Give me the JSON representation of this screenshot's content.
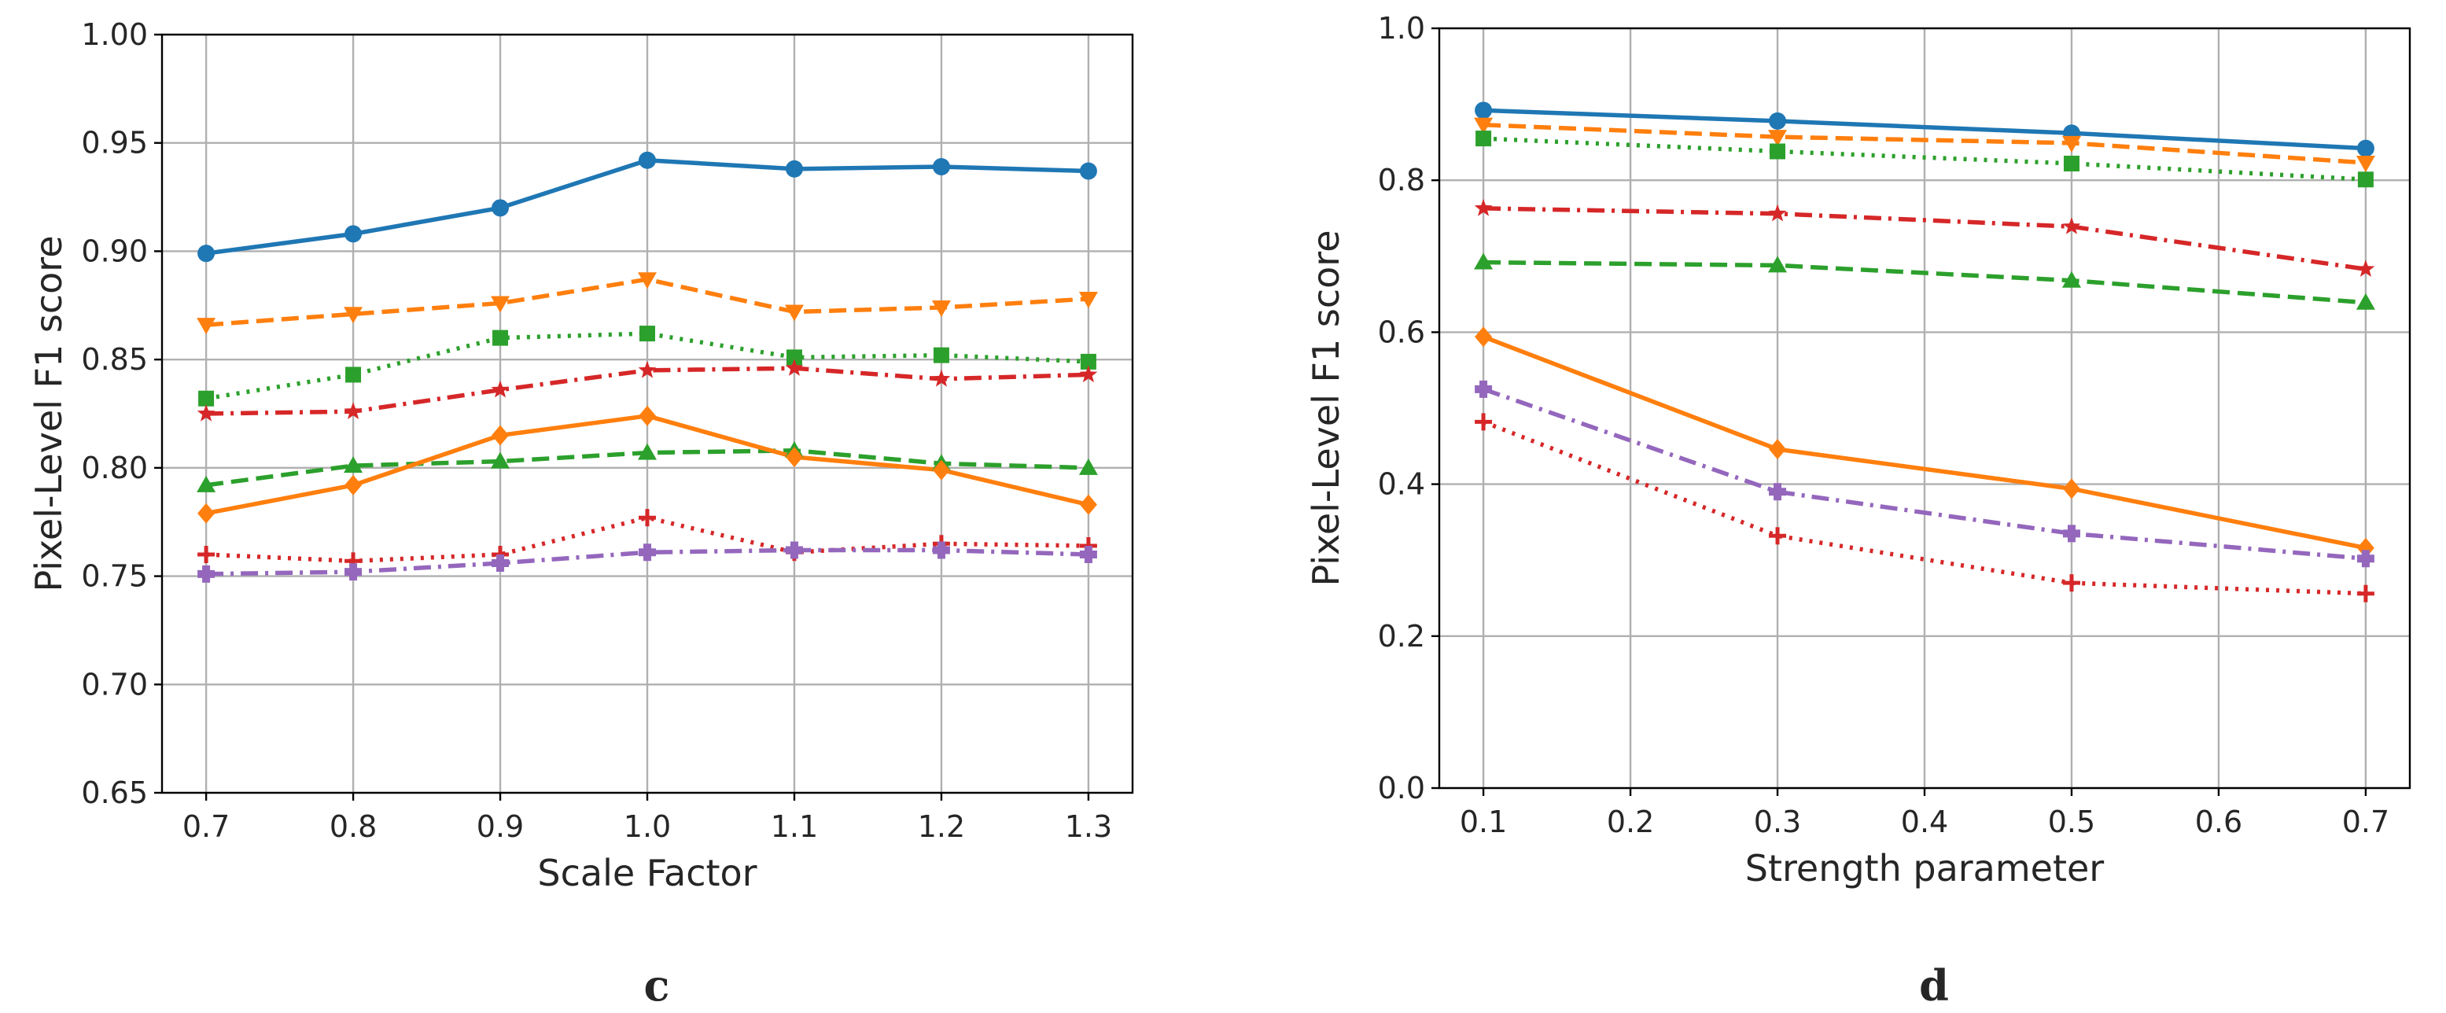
{
  "chart_data": [
    {
      "type": "line",
      "panel_label": "c",
      "xlabel": "Scale Factor",
      "ylabel": "Pixel-Level F1 score",
      "x": [
        0.7,
        0.8,
        0.9,
        1.0,
        1.1,
        1.2,
        1.3
      ],
      "x_ticks": [
        "0.7",
        "0.8",
        "0.9",
        "1.0",
        "1.1",
        "1.2",
        "1.3"
      ],
      "xlim": [
        0.67,
        1.33
      ],
      "ylim": [
        0.65,
        1.0
      ],
      "y_ticks": [
        "0.65",
        "0.70",
        "0.75",
        "0.80",
        "0.85",
        "0.90",
        "0.95",
        "1.00"
      ],
      "grid": true,
      "series": [
        {
          "id": "s1",
          "color": "#1f77b4",
          "dash": "solid",
          "marker": "circle",
          "values": [
            0.899,
            0.908,
            0.92,
            0.942,
            0.938,
            0.939,
            0.937
          ]
        },
        {
          "id": "s2",
          "color": "#ff7f0e",
          "dash": "dashed",
          "marker": "triangle-down",
          "values": [
            0.866,
            0.871,
            0.876,
            0.887,
            0.872,
            0.874,
            0.878
          ]
        },
        {
          "id": "s3",
          "color": "#2ca02c",
          "dash": "dotted",
          "marker": "square",
          "values": [
            0.832,
            0.843,
            0.86,
            0.862,
            0.851,
            0.852,
            0.849
          ]
        },
        {
          "id": "s4",
          "color": "#d62728",
          "dash": "dashdot",
          "marker": "star",
          "values": [
            0.825,
            0.826,
            0.836,
            0.845,
            0.846,
            0.841,
            0.843
          ]
        },
        {
          "id": "s5",
          "color": "#2ca02c",
          "dash": "dashed",
          "marker": "triangle-up",
          "values": [
            0.792,
            0.801,
            0.803,
            0.807,
            0.808,
            0.802,
            0.8
          ]
        },
        {
          "id": "s6",
          "color": "#ff7f0e",
          "dash": "solid",
          "marker": "diamond",
          "values": [
            0.779,
            0.792,
            0.815,
            0.824,
            0.805,
            0.799,
            0.783
          ]
        },
        {
          "id": "s7",
          "color": "#d62728",
          "dash": "dotted",
          "marker": "plus",
          "values": [
            0.76,
            0.757,
            0.76,
            0.777,
            0.761,
            0.765,
            0.764
          ]
        },
        {
          "id": "s8",
          "color": "#9467bd",
          "dash": "dashdot",
          "marker": "plus-filled",
          "values": [
            0.751,
            0.752,
            0.756,
            0.761,
            0.762,
            0.762,
            0.76
          ]
        }
      ]
    },
    {
      "type": "line",
      "panel_label": "d",
      "xlabel": "Strength parameter",
      "ylabel": "Pixel-Level F1 score",
      "x": [
        0.1,
        0.3,
        0.5,
        0.7
      ],
      "x_tick_values": [
        0.1,
        0.2,
        0.3,
        0.4,
        0.5,
        0.6,
        0.7
      ],
      "x_ticks": [
        "0.1",
        "0.2",
        "0.3",
        "0.4",
        "0.5",
        "0.6",
        "0.7"
      ],
      "xlim": [
        0.07,
        0.73
      ],
      "ylim": [
        0.0,
        1.0
      ],
      "y_ticks": [
        "0.0",
        "0.2",
        "0.4",
        "0.6",
        "0.8",
        "1.0"
      ],
      "grid": true,
      "series": [
        {
          "id": "s1",
          "color": "#1f77b4",
          "dash": "solid",
          "marker": "circle",
          "values": [
            0.892,
            0.878,
            0.862,
            0.842
          ]
        },
        {
          "id": "s2",
          "color": "#ff7f0e",
          "dash": "dashed",
          "marker": "triangle-down",
          "values": [
            0.873,
            0.857,
            0.849,
            0.823
          ]
        },
        {
          "id": "s3",
          "color": "#2ca02c",
          "dash": "dotted",
          "marker": "square",
          "values": [
            0.855,
            0.838,
            0.822,
            0.801
          ]
        },
        {
          "id": "s4",
          "color": "#d62728",
          "dash": "dashdot",
          "marker": "star",
          "values": [
            0.763,
            0.756,
            0.739,
            0.683
          ]
        },
        {
          "id": "s5",
          "color": "#2ca02c",
          "dash": "dashed",
          "marker": "triangle-up",
          "values": [
            0.692,
            0.688,
            0.668,
            0.639
          ]
        },
        {
          "id": "s6",
          "color": "#ff7f0e",
          "dash": "solid",
          "marker": "diamond",
          "values": [
            0.594,
            0.446,
            0.394,
            0.316
          ]
        },
        {
          "id": "s7",
          "color": "#9467bd",
          "dash": "dashdot",
          "marker": "plus-filled",
          "values": [
            0.525,
            0.39,
            0.335,
            0.302
          ]
        },
        {
          "id": "s8",
          "color": "#d62728",
          "dash": "dotted",
          "marker": "plus",
          "values": [
            0.482,
            0.332,
            0.27,
            0.256
          ]
        }
      ]
    }
  ]
}
